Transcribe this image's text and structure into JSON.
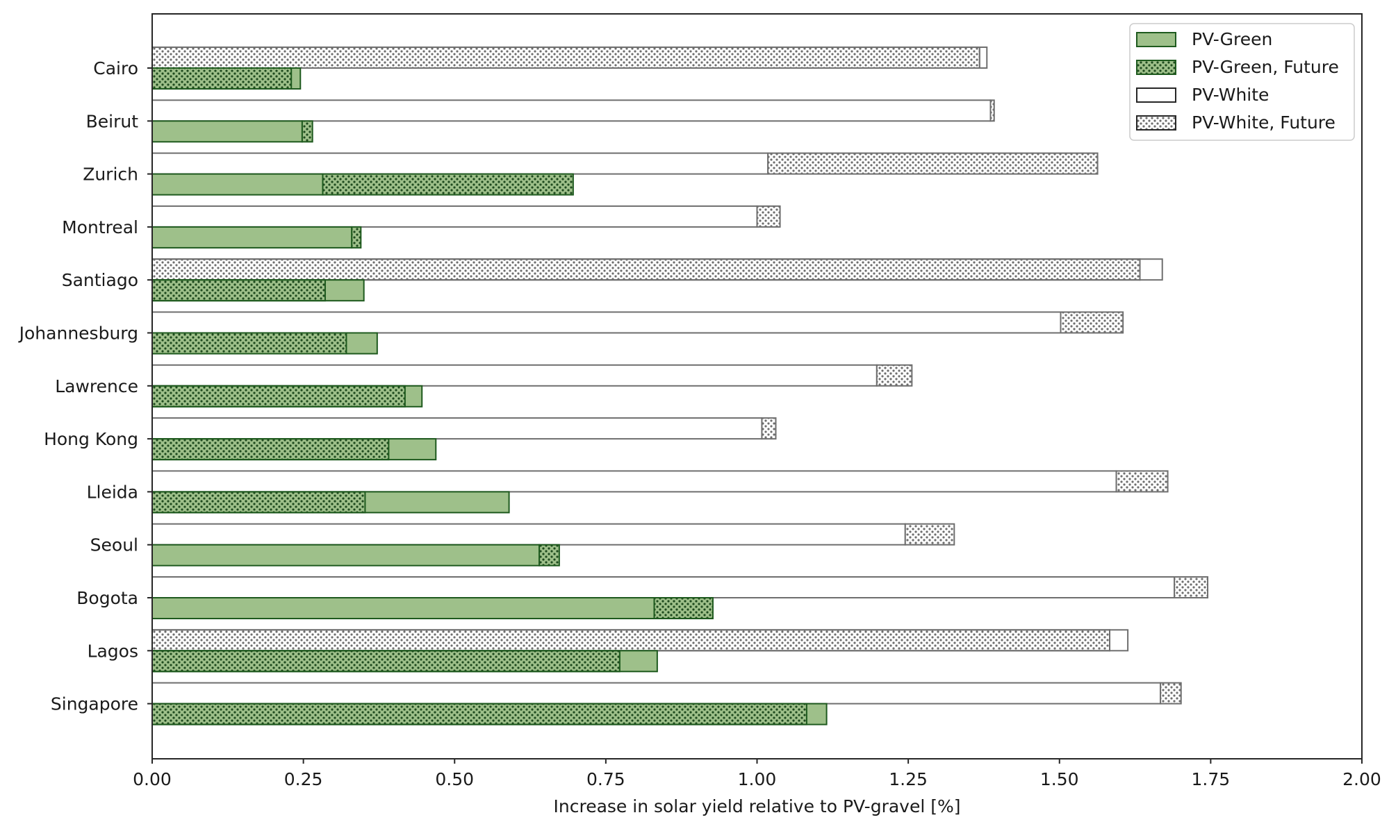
{
  "chart_data": {
    "type": "bar",
    "orientation": "horizontal",
    "title": "",
    "xlabel": "Increase in solar yield relative to PV-gravel [%]",
    "ylabel": "",
    "xlim": [
      0,
      2.0
    ],
    "xticks": [
      "0.00",
      "0.25",
      "0.50",
      "0.75",
      "1.00",
      "1.25",
      "1.50",
      "1.75",
      "2.00"
    ],
    "grid": false,
    "legend_position": "top-right",
    "categories": [
      "Cairo",
      "Beirut",
      "Zurich",
      "Montreal",
      "Santiago",
      "Johannesburg",
      "Lawrence",
      "Hong Kong",
      "Lleida",
      "Seoul",
      "Bogota",
      "Lagos",
      "Singapore"
    ],
    "series": [
      {
        "name": "PV-Green",
        "values": [
          0.245,
          0.248,
          0.282,
          0.33,
          0.35,
          0.372,
          0.446,
          0.469,
          0.59,
          0.64,
          0.83,
          0.835,
          1.115
        ]
      },
      {
        "name": "PV-Green, Future",
        "values": [
          0.23,
          0.265,
          0.696,
          0.345,
          0.286,
          0.321,
          0.418,
          0.391,
          0.352,
          0.673,
          0.927,
          0.773,
          1.082
        ]
      },
      {
        "name": "PV-White",
        "values": [
          1.38,
          1.386,
          1.018,
          1.0,
          1.67,
          1.502,
          1.198,
          1.008,
          1.594,
          1.245,
          1.69,
          1.613,
          1.667
        ]
      },
      {
        "name": "PV-White, Future",
        "values": [
          1.368,
          1.392,
          1.563,
          1.038,
          1.633,
          1.605,
          1.256,
          1.031,
          1.679,
          1.326,
          1.745,
          1.583,
          1.701
        ]
      }
    ],
    "colors": {
      "green_fill": "#9ec08a",
      "green_edge": "#1e5a1e",
      "white_fill": "#ffffff",
      "white_edge": "#6e6e6e",
      "dot_green": "#1e4a1e",
      "dot_white": "#6e6e6e",
      "axis": "#262626"
    }
  }
}
